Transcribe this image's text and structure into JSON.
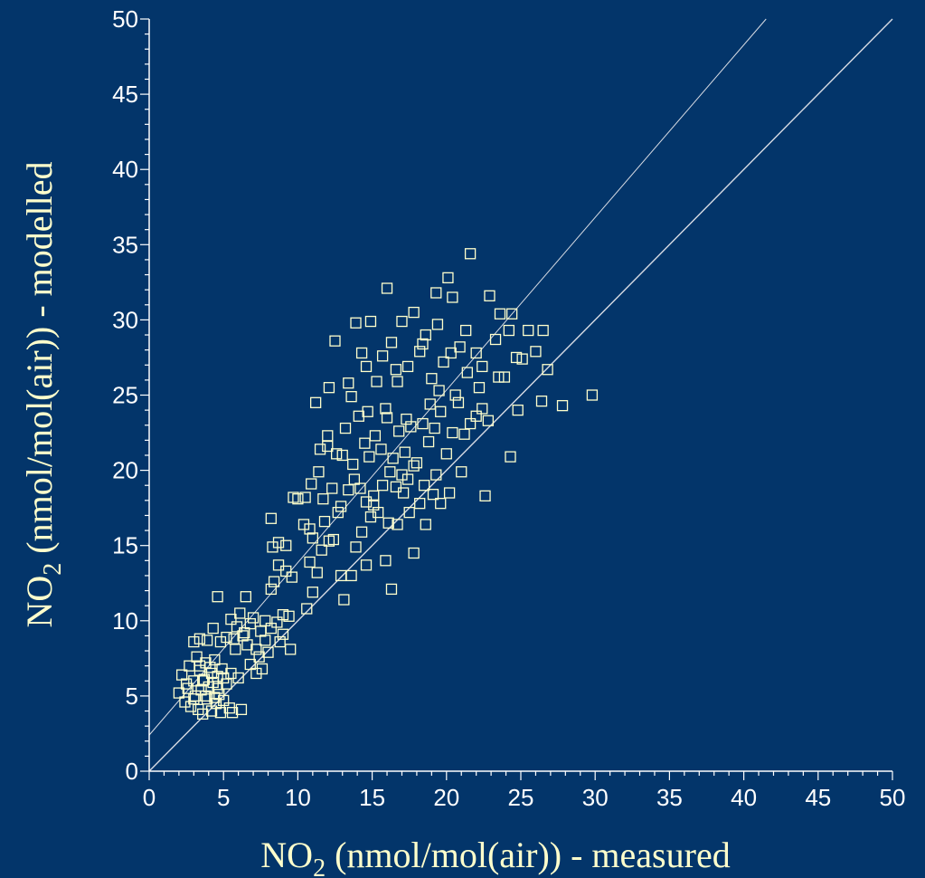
{
  "chart_data": {
    "type": "scatter",
    "title": "",
    "xlabel": {
      "prefix": "NO",
      "sub": "2",
      "suffix": " (nmol/mol(air)) - measured"
    },
    "ylabel": {
      "prefix": "NO",
      "sub": "2",
      "suffix": " (nmol/mol(air)) - modelled"
    },
    "xlim": [
      0,
      50
    ],
    "ylim": [
      0,
      50
    ],
    "x_ticks": [
      "0",
      "5",
      "10",
      "15",
      "20",
      "25",
      "30",
      "35",
      "40",
      "45",
      "50"
    ],
    "y_ticks": [
      "0",
      "5",
      "10",
      "15",
      "20",
      "25",
      "30",
      "35",
      "40",
      "45",
      "50"
    ],
    "grid": false,
    "reference_lines": [
      {
        "x": [
          0,
          50
        ],
        "y": [
          0,
          50
        ]
      },
      {
        "x": [
          0,
          41.5
        ],
        "y": [
          2.4,
          50
        ]
      }
    ],
    "colors": {
      "background": "#03356A",
      "marker": "#FFFFCC",
      "axis": "#FFFFFF"
    },
    "series": [
      {
        "marker": "open-square",
        "points": [
          [
            2.0,
            5.2
          ],
          [
            2.2,
            6.4
          ],
          [
            2.4,
            4.6
          ],
          [
            2.5,
            5.8
          ],
          [
            2.7,
            7.0
          ],
          [
            2.8,
            4.3
          ],
          [
            3.0,
            6.0
          ],
          [
            3.1,
            5.0
          ],
          [
            3.2,
            7.6
          ],
          [
            3.3,
            4.1
          ],
          [
            3.4,
            6.7
          ],
          [
            3.5,
            5.4
          ],
          [
            3.6,
            3.8
          ],
          [
            3.7,
            6.1
          ],
          [
            3.8,
            7.2
          ],
          [
            3.9,
            4.8
          ],
          [
            4.0,
            5.6
          ],
          [
            4.1,
            6.9
          ],
          [
            4.2,
            4.0
          ],
          [
            4.3,
            5.9
          ],
          [
            4.4,
            7.4
          ],
          [
            4.5,
            4.5
          ],
          [
            4.6,
            6.3
          ],
          [
            4.7,
            5.1
          ],
          [
            4.8,
            3.9
          ],
          [
            4.9,
            6.8
          ],
          [
            5.0,
            4.7
          ],
          [
            5.2,
            5.8
          ],
          [
            5.4,
            4.2
          ],
          [
            5.6,
            3.9
          ],
          [
            6.2,
            4.1
          ],
          [
            2.6,
            5.5
          ],
          [
            3.0,
            4.8
          ],
          [
            3.4,
            7.0
          ],
          [
            3.8,
            5.0
          ],
          [
            4.2,
            6.5
          ],
          [
            4.6,
            5.5
          ],
          [
            5.0,
            6.2
          ],
          [
            3.6,
            6.0
          ],
          [
            4.4,
            4.9
          ],
          [
            3.0,
            8.6
          ],
          [
            3.4,
            8.8
          ],
          [
            3.9,
            8.7
          ],
          [
            4.3,
            9.5
          ],
          [
            4.6,
            11.6
          ],
          [
            4.8,
            8.6
          ],
          [
            5.2,
            8.9
          ],
          [
            5.5,
            10.1
          ],
          [
            5.7,
            8.8
          ],
          [
            5.9,
            9.6
          ],
          [
            6.1,
            10.5
          ],
          [
            6.3,
            9.0
          ],
          [
            6.5,
            11.6
          ],
          [
            6.6,
            8.4
          ],
          [
            6.8,
            9.8
          ],
          [
            7.0,
            10.2
          ],
          [
            7.2,
            8.1
          ],
          [
            7.4,
            7.6
          ],
          [
            7.5,
            9.3
          ],
          [
            7.6,
            6.8
          ],
          [
            7.8,
            8.7
          ],
          [
            8.0,
            7.9
          ],
          [
            8.2,
            9.5
          ],
          [
            8.6,
            9.9
          ],
          [
            8.8,
            8.6
          ],
          [
            9.0,
            10.4
          ],
          [
            9.4,
            10.3
          ],
          [
            9.5,
            8.1
          ],
          [
            6.0,
            6.2
          ],
          [
            5.8,
            8.1
          ],
          [
            5.5,
            6.5
          ],
          [
            7.2,
            6.5
          ],
          [
            6.8,
            7.1
          ],
          [
            6.4,
            9.2
          ],
          [
            7.8,
            10.0
          ],
          [
            9.0,
            9.1
          ],
          [
            8.2,
            12.1
          ],
          [
            8.4,
            12.6
          ],
          [
            8.7,
            13.7
          ],
          [
            9.2,
            13.3
          ],
          [
            9.6,
            12.9
          ],
          [
            8.3,
            14.9
          ],
          [
            8.7,
            15.2
          ],
          [
            9.2,
            15.0
          ],
          [
            8.2,
            16.8
          ],
          [
            9.7,
            18.2
          ],
          [
            10.0,
            18.1
          ],
          [
            10.4,
            16.4
          ],
          [
            10.8,
            13.9
          ],
          [
            11.0,
            15.5
          ],
          [
            11.3,
            13.2
          ],
          [
            11.6,
            14.7
          ],
          [
            11.8,
            16.6
          ],
          [
            12.1,
            15.3
          ],
          [
            12.4,
            15.4
          ],
          [
            12.9,
            13.0
          ],
          [
            13.1,
            11.4
          ],
          [
            13.6,
            13.0
          ],
          [
            13.9,
            14.9
          ],
          [
            14.3,
            15.9
          ],
          [
            14.6,
            13.7
          ],
          [
            14.9,
            16.9
          ],
          [
            15.1,
            17.7
          ],
          [
            15.4,
            17.2
          ],
          [
            15.9,
            14.0
          ],
          [
            16.1,
            16.5
          ],
          [
            16.3,
            12.1
          ],
          [
            16.7,
            16.4
          ],
          [
            17.1,
            18.5
          ],
          [
            17.5,
            17.2
          ],
          [
            17.8,
            14.5
          ],
          [
            18.2,
            17.8
          ],
          [
            18.6,
            16.4
          ],
          [
            19.1,
            18.4
          ],
          [
            19.6,
            17.8
          ],
          [
            20.2,
            18.5
          ],
          [
            21.0,
            19.9
          ],
          [
            22.6,
            18.3
          ],
          [
            10.6,
            10.8
          ],
          [
            11.0,
            11.9
          ],
          [
            10.5,
            18.2
          ],
          [
            11.4,
            19.9
          ],
          [
            12.0,
            21.6
          ],
          [
            12.6,
            21.1
          ],
          [
            13.2,
            22.8
          ],
          [
            13.7,
            20.4
          ],
          [
            14.1,
            23.6
          ],
          [
            14.5,
            21.8
          ],
          [
            14.8,
            20.9
          ],
          [
            15.2,
            22.3
          ],
          [
            15.6,
            21.4
          ],
          [
            16.0,
            23.5
          ],
          [
            16.4,
            20.8
          ],
          [
            16.8,
            22.6
          ],
          [
            17.2,
            21.2
          ],
          [
            17.6,
            22.9
          ],
          [
            18.0,
            20.5
          ],
          [
            18.4,
            23.1
          ],
          [
            18.8,
            21.9
          ],
          [
            19.2,
            22.8
          ],
          [
            19.6,
            23.9
          ],
          [
            20.0,
            21.1
          ],
          [
            20.4,
            22.5
          ],
          [
            20.8,
            24.5
          ],
          [
            21.2,
            22.4
          ],
          [
            21.6,
            23.1
          ],
          [
            22.0,
            23.6
          ],
          [
            22.4,
            24.1
          ],
          [
            22.8,
            23.3
          ],
          [
            10.9,
            19.1
          ],
          [
            11.7,
            18.1
          ],
          [
            12.3,
            18.8
          ],
          [
            12.9,
            17.6
          ],
          [
            13.4,
            18.7
          ],
          [
            13.8,
            19.4
          ],
          [
            14.2,
            18.8
          ],
          [
            14.6,
            17.9
          ],
          [
            15.1,
            18.3
          ],
          [
            15.7,
            19.0
          ],
          [
            16.2,
            19.9
          ],
          [
            16.6,
            18.9
          ],
          [
            17.0,
            19.7
          ],
          [
            17.4,
            19.4
          ],
          [
            17.8,
            20.3
          ],
          [
            18.5,
            19.0
          ],
          [
            19.3,
            19.7
          ],
          [
            12.1,
            25.5
          ],
          [
            12.5,
            28.6
          ],
          [
            13.4,
            25.8
          ],
          [
            13.9,
            29.8
          ],
          [
            14.3,
            27.8
          ],
          [
            14.6,
            26.9
          ],
          [
            14.9,
            29.9
          ],
          [
            15.3,
            25.9
          ],
          [
            15.7,
            27.6
          ],
          [
            16.0,
            32.1
          ],
          [
            16.3,
            28.5
          ],
          [
            16.7,
            25.9
          ],
          [
            17.0,
            29.9
          ],
          [
            17.4,
            26.9
          ],
          [
            17.8,
            30.5
          ],
          [
            18.2,
            27.9
          ],
          [
            18.6,
            29.0
          ],
          [
            19.0,
            26.1
          ],
          [
            19.3,
            31.8
          ],
          [
            19.8,
            27.2
          ],
          [
            20.1,
            32.8
          ],
          [
            20.4,
            31.5
          ],
          [
            20.9,
            28.2
          ],
          [
            21.3,
            29.3
          ],
          [
            21.6,
            34.4
          ],
          [
            22.0,
            27.8
          ],
          [
            22.4,
            26.9
          ],
          [
            22.9,
            31.6
          ],
          [
            23.3,
            28.7
          ],
          [
            23.6,
            30.4
          ],
          [
            23.9,
            26.2
          ],
          [
            24.2,
            29.3
          ],
          [
            24.4,
            30.4
          ],
          [
            24.7,
            27.5
          ],
          [
            25.1,
            27.4
          ],
          [
            25.5,
            29.3
          ],
          [
            26.0,
            27.9
          ],
          [
            26.5,
            29.3
          ],
          [
            26.8,
            26.7
          ],
          [
            26.4,
            24.6
          ],
          [
            27.8,
            24.3
          ],
          [
            29.8,
            25.0
          ],
          [
            24.8,
            24.0
          ],
          [
            24.3,
            20.9
          ],
          [
            11.2,
            24.5
          ],
          [
            12.0,
            22.3
          ],
          [
            13.6,
            24.9
          ],
          [
            14.7,
            23.9
          ],
          [
            15.9,
            24.1
          ],
          [
            17.3,
            23.4
          ],
          [
            18.9,
            24.4
          ],
          [
            19.5,
            25.3
          ],
          [
            20.6,
            25.0
          ],
          [
            21.4,
            26.5
          ],
          [
            22.2,
            25.5
          ],
          [
            23.5,
            26.2
          ],
          [
            20.3,
            27.8
          ],
          [
            19.4,
            29.7
          ],
          [
            18.4,
            28.4
          ],
          [
            16.6,
            26.7
          ],
          [
            13.0,
            21.0
          ],
          [
            11.5,
            21.4
          ],
          [
            10.8,
            16.1
          ],
          [
            12.7,
            17.2
          ]
        ]
      }
    ]
  }
}
